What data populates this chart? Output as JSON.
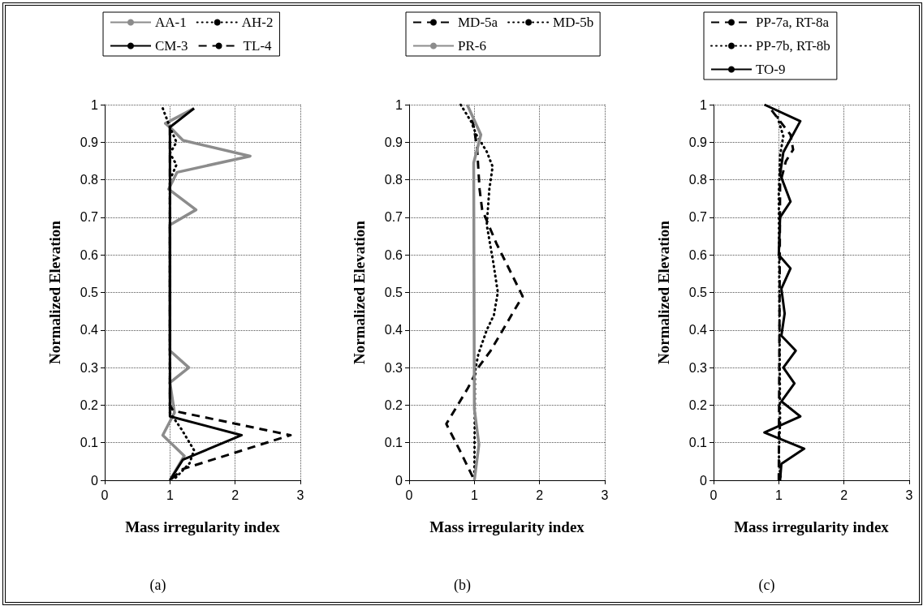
{
  "chart_data": [
    {
      "type": "line",
      "xlabel": "Mass irregularity index",
      "ylabel": "Normalized Elevation",
      "annotations": [
        "(a)"
      ],
      "xlim": [
        0,
        3
      ],
      "xticks": [
        0,
        1,
        2,
        3
      ],
      "ylim": [
        0,
        1
      ],
      "yticks": [
        0,
        0.1,
        0.2,
        0.3,
        0.4,
        0.5,
        0.6,
        0.7,
        0.8,
        0.9,
        1
      ],
      "grid": true,
      "legend": "top",
      "marker": "none",
      "series": [
        {
          "name": "AA-1",
          "color": "#8c8c8c",
          "line_style": "solid",
          "x": [
            1.37,
            0.93,
            1.0,
            1.2,
            2.23,
            1.11,
            0.98,
            1.4,
            1.0,
            1.0,
            1.29,
            1.0,
            1.07,
            0.89,
            1.22,
            1.0
          ],
          "values": [
            0.99,
            0.95,
            0.94,
            0.905,
            0.863,
            0.82,
            0.775,
            0.72,
            0.68,
            0.345,
            0.3,
            0.26,
            0.18,
            0.12,
            0.065,
            0
          ]
        },
        {
          "name": "AH-2",
          "color": "#000000",
          "line_style": "dotted",
          "x": [
            0.89,
            1.0,
            1.1,
            1.0,
            1.1,
            1.0,
            1.0,
            1.18,
            1.37,
            1.3,
            1.05
          ],
          "values": [
            0.99,
            0.94,
            0.9,
            0.87,
            0.84,
            0.8,
            0.18,
            0.135,
            0.08,
            0.045,
            0
          ]
        },
        {
          "name": "CM-3",
          "color": "#000000",
          "line_style": "solid",
          "x": [
            1.37,
            1.0,
            1.0,
            2.1,
            1.2,
            1.0
          ],
          "values": [
            0.99,
            0.94,
            0.17,
            0.12,
            0.055,
            0
          ]
        },
        {
          "name": "TL-4",
          "color": "#000000",
          "line_style": "dashed",
          "x": [
            1.0,
            1.0,
            1.05,
            2.85,
            1.2,
            1.0
          ],
          "values": [
            0.94,
            0.2,
            0.185,
            0.12,
            0.03,
            0
          ]
        }
      ]
    },
    {
      "type": "line",
      "xlabel": "Mass irregularity index",
      "ylabel": "Normalized Elevation",
      "annotations": [
        "(b)"
      ],
      "xlim": [
        0,
        3
      ],
      "xticks": [
        0,
        1,
        2,
        3
      ],
      "ylim": [
        0,
        1
      ],
      "yticks": [
        0,
        0.1,
        0.2,
        0.3,
        0.4,
        0.5,
        0.6,
        0.7,
        0.8,
        0.9,
        1
      ],
      "grid": true,
      "legend": "top",
      "marker": "none",
      "series": [
        {
          "name": "MD-5a",
          "color": "#000000",
          "line_style": "dashed",
          "x": [
            0.97,
            1.04,
            1.08,
            1.12,
            1.34,
            1.74,
            1.25,
            1.06,
            0.9,
            0.57,
            0.79,
            0.93,
            1.0
          ],
          "values": [
            0.96,
            0.89,
            0.775,
            0.72,
            0.63,
            0.49,
            0.345,
            0.3,
            0.245,
            0.15,
            0.075,
            0.025,
            0
          ]
        },
        {
          "name": "MD-5b",
          "color": "#000000",
          "line_style": "dotted",
          "x": [
            0.79,
            0.95,
            1.03,
            1.19,
            1.28,
            1.23,
            1.19,
            1.29,
            1.36,
            1.3,
            1.19,
            1.06,
            1.01,
            1.0
          ],
          "values": [
            1.0,
            0.955,
            0.92,
            0.875,
            0.835,
            0.775,
            0.68,
            0.58,
            0.5,
            0.44,
            0.4,
            0.335,
            0.29,
            0
          ]
        },
        {
          "name": "PR-6",
          "color": "#8c8c8c",
          "line_style": "solid",
          "x": [
            0.89,
            1.1,
            0.99,
            1.0,
            1.07,
            1.0
          ],
          "values": [
            1.0,
            0.92,
            0.845,
            0.19,
            0.095,
            0
          ]
        }
      ]
    },
    {
      "type": "line",
      "xlabel": "Mass irregularity index",
      "ylabel": "Normalized Elevation",
      "annotations": [
        "(c)"
      ],
      "xlim": [
        0,
        3
      ],
      "xticks": [
        0,
        1,
        2,
        3
      ],
      "ylim": [
        0,
        1
      ],
      "yticks": [
        0,
        0.1,
        0.2,
        0.3,
        0.4,
        0.5,
        0.6,
        0.7,
        0.8,
        0.9,
        1
      ],
      "grid": true,
      "legend": "top",
      "marker": "none",
      "series": [
        {
          "name": "PP-7a, RT-8a",
          "color": "#000000",
          "line_style": "dashed",
          "x": [
            0.89,
            1.18,
            1.22,
            1.11,
            1.02,
            1.0
          ],
          "values": [
            0.985,
            0.92,
            0.88,
            0.85,
            0.79,
            0
          ]
        },
        {
          "name": "PP-7b, RT-8b",
          "color": "#000000",
          "line_style": "dotted",
          "x": [
            0.98,
            1.07,
            1.02,
            1.0,
            1.02,
            1.0,
            1.03
          ],
          "values": [
            0.967,
            0.916,
            0.865,
            0.76,
            0.153,
            0.07,
            0
          ]
        },
        {
          "name": "TO-9",
          "color": "#000000",
          "line_style": "solid",
          "x": [
            0.78,
            1.33,
            1.07,
            1.02,
            1.18,
            1.02,
            1.0,
            1.18,
            1.04,
            1.09,
            1.04,
            1.26,
            1.07,
            1.24,
            1.04,
            1.33,
            0.78,
            1.39,
            1.04,
            1.02
          ],
          "values": [
            1.0,
            0.956,
            0.873,
            0.815,
            0.742,
            0.7,
            0.6,
            0.564,
            0.51,
            0.444,
            0.385,
            0.345,
            0.3,
            0.258,
            0.21,
            0.17,
            0.127,
            0.084,
            0.044,
            0
          ]
        }
      ]
    }
  ]
}
